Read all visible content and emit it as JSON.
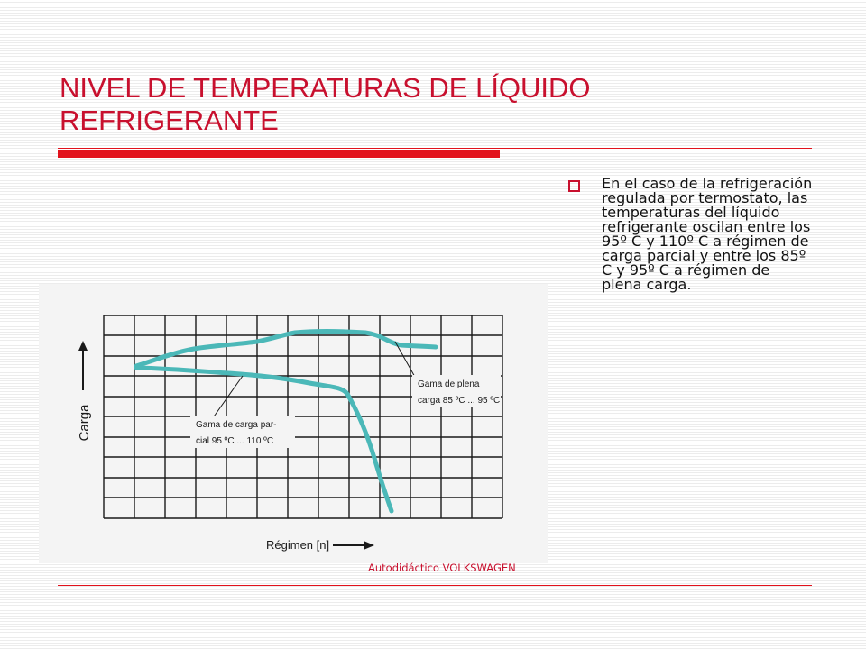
{
  "slide": {
    "title": "NIVEL DE TEMPERATURAS DE LÍQUIDO REFRIGERANTE",
    "bullets": [
      "En el caso de la refrigeración regulada por termostato, las temperaturas del líquido refrigerante oscilan entre los 95º C y 110º C a régimen de carga parcial y entre los 85º C y 95º C a régimen de plena carga."
    ],
    "colors": {
      "title": "#c8102e",
      "rule": "#e2121c",
      "curve": "#4bb8b8"
    }
  },
  "figure": {
    "y_axis_label": "Carga",
    "x_axis_label": "Régimen [n]",
    "annotation_full_line1": "Gama de plena",
    "annotation_full_line2": "carga 85 ºC ... 95 ºC",
    "annotation_partial_line1": "Gama de carga par-",
    "annotation_partial_line2": "cial 95 ºC ... 110 ºC",
    "caption": "Autodidáctico  VOLKSWAGEN"
  }
}
